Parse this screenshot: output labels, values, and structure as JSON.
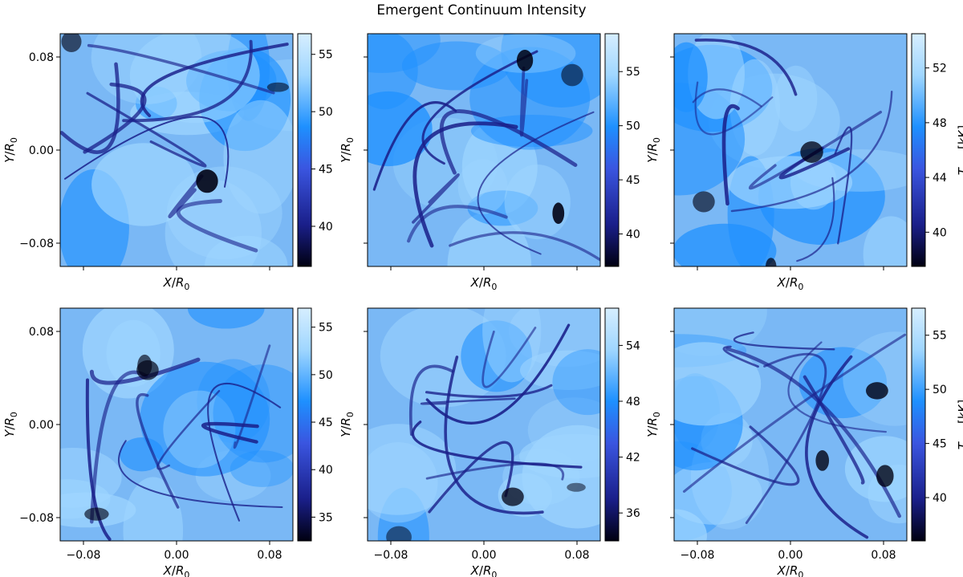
{
  "figure": {
    "title": "Emergent Continuum Intensity"
  },
  "colormap": {
    "dark": "#000011",
    "mid_dark": "#1a1f8a",
    "mid": "#3a55e0",
    "blue": "#1e90ff",
    "light": "#9fd6ff",
    "lightest": "#d6eeff"
  },
  "chart_data": [
    {
      "type": "heatmap",
      "xlabel": "X/R₀",
      "ylabel": "Y/R₀",
      "xticks": [
        -0.08,
        0.0,
        0.08
      ],
      "xtick_labels": [],
      "yticks": [
        -0.08,
        0.0,
        0.08
      ],
      "ytick_labels": [
        "−0.08",
        "0.00",
        "0.08"
      ],
      "xlim": [
        -0.1,
        0.1
      ],
      "ylim": [
        -0.1,
        0.1
      ],
      "colorbar": {
        "ticks": [
          40,
          45,
          50,
          55
        ],
        "tick_labels": [
          "40",
          "45",
          "50",
          "55"
        ],
        "range": [
          36.5,
          56.8
        ],
        "label": ""
      },
      "field_seed": 1
    },
    {
      "type": "heatmap",
      "xlabel": "X/R₀",
      "ylabel": "Y/R₀",
      "xticks": [
        -0.08,
        0.0,
        0.08
      ],
      "xtick_labels": [],
      "yticks": [
        -0.08,
        0.0,
        0.08
      ],
      "ytick_labels": [],
      "xlim": [
        -0.1,
        0.1
      ],
      "ylim": [
        -0.1,
        0.1
      ],
      "colorbar": {
        "ticks": [
          40,
          45,
          50,
          55
        ],
        "tick_labels": [
          "40",
          "45",
          "50",
          "55"
        ],
        "range": [
          37.0,
          58.5
        ],
        "label": ""
      },
      "field_seed": 2
    },
    {
      "type": "heatmap",
      "xlabel": "X/R₀",
      "ylabel": "Y/R₀",
      "xticks": [
        -0.08,
        0.0,
        0.08
      ],
      "xtick_labels": [],
      "yticks": [
        -0.08,
        0.0,
        0.08
      ],
      "ytick_labels": [],
      "xlim": [
        -0.1,
        0.1
      ],
      "ylim": [
        -0.1,
        0.1
      ],
      "colorbar": {
        "ticks": [
          40,
          44,
          48,
          52
        ],
        "tick_labels": [
          "40",
          "44",
          "48",
          "52"
        ],
        "range": [
          37.5,
          54.5
        ],
        "label": "T_rad [kK]"
      },
      "field_seed": 3
    },
    {
      "type": "heatmap",
      "xlabel": "X/R₀",
      "ylabel": "Y/R₀",
      "xticks": [
        -0.08,
        0.0,
        0.08
      ],
      "xtick_labels": [
        "−0.08",
        "0.00",
        "0.08"
      ],
      "yticks": [
        -0.08,
        0.0,
        0.08
      ],
      "ytick_labels": [
        "−0.08",
        "0.00",
        "0.08"
      ],
      "xlim": [
        -0.1,
        0.1
      ],
      "ylim": [
        -0.1,
        0.1
      ],
      "colorbar": {
        "ticks": [
          35,
          40,
          45,
          50,
          55
        ],
        "tick_labels": [
          "35",
          "40",
          "45",
          "50",
          "55"
        ],
        "range": [
          32.5,
          57.0
        ],
        "label": ""
      },
      "field_seed": 4
    },
    {
      "type": "heatmap",
      "xlabel": "X/R₀",
      "ylabel": "Y/R₀",
      "xticks": [
        -0.08,
        0.0,
        0.08
      ],
      "xtick_labels": [
        "−0.08",
        "0.00",
        "0.08"
      ],
      "yticks": [
        -0.08,
        0.0,
        0.08
      ],
      "ytick_labels": [],
      "xlim": [
        -0.1,
        0.1
      ],
      "ylim": [
        -0.1,
        0.1
      ],
      "colorbar": {
        "ticks": [
          36,
          42,
          48,
          54
        ],
        "tick_labels": [
          "36",
          "42",
          "48",
          "54"
        ],
        "range": [
          33.0,
          58.0
        ],
        "label": ""
      },
      "field_seed": 5
    },
    {
      "type": "heatmap",
      "xlabel": "X/R₀",
      "ylabel": "Y/R₀",
      "xticks": [
        -0.08,
        0.0,
        0.08
      ],
      "xtick_labels": [
        "−0.08",
        "0.00",
        "0.08"
      ],
      "yticks": [
        -0.08,
        0.0,
        0.08
      ],
      "ytick_labels": [],
      "xlim": [
        -0.1,
        0.1
      ],
      "ylim": [
        -0.1,
        0.1
      ],
      "colorbar": {
        "ticks": [
          40,
          45,
          50,
          55
        ],
        "tick_labels": [
          "40",
          "45",
          "50",
          "55"
        ],
        "range": [
          36.0,
          57.5
        ],
        "label": "T_rad [kK]"
      },
      "field_seed": 6
    }
  ]
}
